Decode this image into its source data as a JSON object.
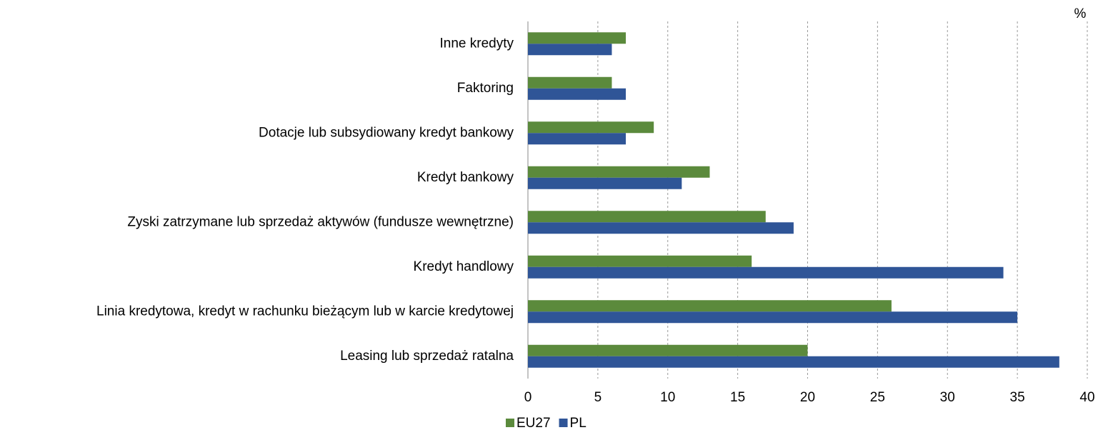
{
  "chart_data": {
    "type": "bar",
    "orientation": "horizontal",
    "unit": "%",
    "categories": [
      "Inne kredyty",
      "Faktoring",
      "Dotacje lub subsydiowany kredyt bankowy",
      "Kredyt bankowy",
      "Zyski zatrzymane lub sprzedaż aktywów (fundusze wewnętrzne)",
      "Kredyt handlowy",
      "Linia kredytowa, kredyt w rachunku bieżącym lub w karcie kredytowej",
      "Leasing lub sprzedaż ratalna"
    ],
    "series": [
      {
        "name": "EU27",
        "color": "#5b8a3c",
        "values": [
          7,
          6,
          9,
          13,
          17,
          16,
          26,
          20
        ]
      },
      {
        "name": "PL",
        "color": "#2f5597",
        "values": [
          6,
          7,
          7,
          11,
          19,
          34,
          35,
          38
        ]
      }
    ],
    "xlim": [
      0,
      40
    ],
    "xticks": [
      0,
      5,
      10,
      15,
      20,
      25,
      30,
      35,
      40
    ],
    "grid": true,
    "legend": "bottom"
  }
}
